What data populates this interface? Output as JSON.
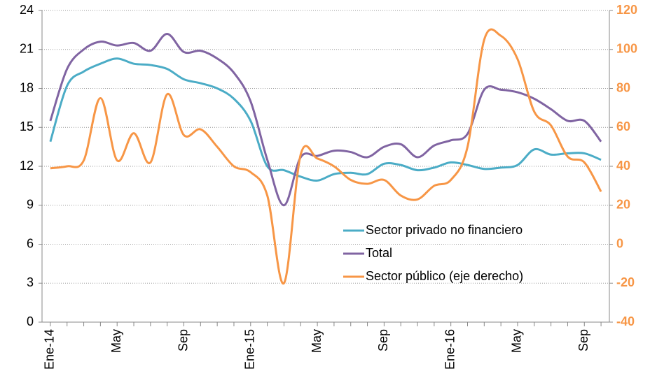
{
  "chart_data": {
    "type": "line",
    "categories": [
      "Ene-14",
      null,
      null,
      null,
      "May",
      null,
      null,
      null,
      "Sep",
      null,
      null,
      null,
      "Ene-15",
      null,
      null,
      null,
      "May",
      null,
      null,
      null,
      "Sep",
      null,
      null,
      null,
      "Ene-16",
      null,
      null,
      null,
      "May",
      null,
      null,
      null,
      "Sep",
      null
    ],
    "series": [
      {
        "name": "Sector privado no financiero",
        "color": "#4bacc6",
        "values": [
          13.9,
          18.2,
          19.3,
          19.9,
          20.3,
          19.9,
          19.8,
          19.5,
          18.7,
          18.4,
          18.0,
          17.2,
          15.5,
          12.0,
          11.7,
          11.2,
          10.9,
          11.4,
          11.5,
          11.4,
          12.2,
          12.1,
          11.7,
          11.9,
          12.3,
          12.1,
          11.8,
          11.9,
          12.1,
          13.3,
          12.9,
          13.0,
          13.0,
          12.5
        ]
      },
      {
        "name": "Total",
        "color": "#8064a2",
        "values": [
          15.5,
          19.5,
          21.0,
          21.6,
          21.3,
          21.5,
          20.9,
          22.2,
          20.8,
          20.9,
          20.3,
          19.2,
          17.0,
          12.5,
          9.0,
          12.7,
          12.8,
          13.2,
          13.1,
          12.7,
          13.5,
          13.7,
          12.7,
          13.6,
          14.0,
          14.5,
          17.9,
          17.9,
          17.7,
          17.2,
          16.4,
          15.5,
          15.5,
          13.9
        ]
      },
      {
        "name": "Sector público (eje derecho)",
        "color": "#f79646",
        "axis": "y2",
        "values": [
          39,
          40,
          43,
          75,
          43,
          57,
          42,
          77,
          56,
          59,
          50,
          40,
          37,
          25,
          -20,
          46,
          44,
          40,
          33,
          31,
          33,
          25,
          23,
          30,
          33,
          50,
          105,
          107,
          95,
          68,
          61,
          45,
          42,
          27
        ]
      }
    ],
    "ylim": [
      0,
      24
    ],
    "yticks": [
      0,
      3,
      6,
      9,
      12,
      15,
      18,
      21,
      24
    ],
    "y2lim": [
      -40,
      120
    ],
    "y2ticks": [
      -40,
      -20,
      0,
      20,
      40,
      60,
      80,
      100,
      120
    ],
    "grid": true,
    "legend": "right"
  }
}
